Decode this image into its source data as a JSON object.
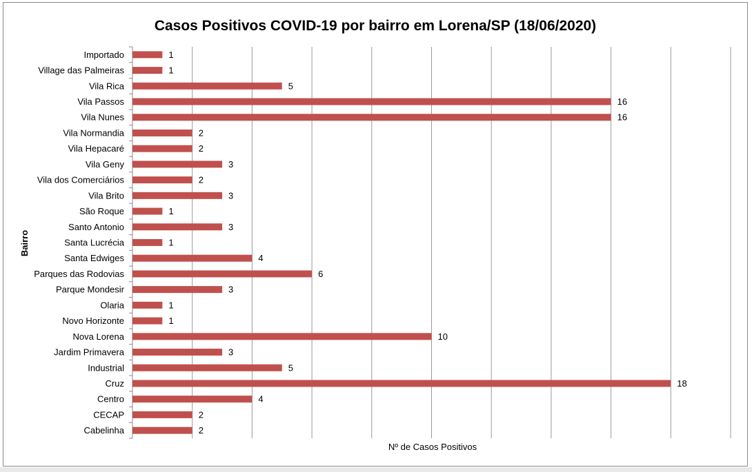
{
  "chart_data": {
    "type": "bar",
    "orientation": "horizontal",
    "title": "Casos Positivos COVID-19 por bairro em Lorena/SP (18/06/2020)",
    "xlabel": "Nº de Casos Positivos",
    "ylabel": "Bairro",
    "xlim": [
      0,
      20
    ],
    "grid": "vertical",
    "legend": "none",
    "bar_color": "#c0504d",
    "categories": [
      "Importado",
      "Village das Palmeiras",
      "Vila Rica",
      "Vila Passos",
      "Vila Nunes",
      "Vila Normandia",
      "Vila Hepacaré",
      "Vila Geny",
      "Vila dos Comerciários",
      "Vila Brito",
      "São Roque",
      "Santo Antonio",
      "Santa Lucrécia",
      "Santa Edwiges",
      "Parques das Rodovias",
      "Parque Mondesir",
      "Olaria",
      "Novo Horizonte",
      "Nova Lorena",
      "Jardim Primavera",
      "Industrial",
      "Cruz",
      "Centro",
      "CECAP",
      "Cabelinha"
    ],
    "values": [
      1,
      1,
      5,
      16,
      16,
      2,
      2,
      3,
      2,
      3,
      1,
      3,
      1,
      4,
      6,
      3,
      1,
      1,
      10,
      3,
      5,
      18,
      4,
      2,
      2
    ]
  }
}
